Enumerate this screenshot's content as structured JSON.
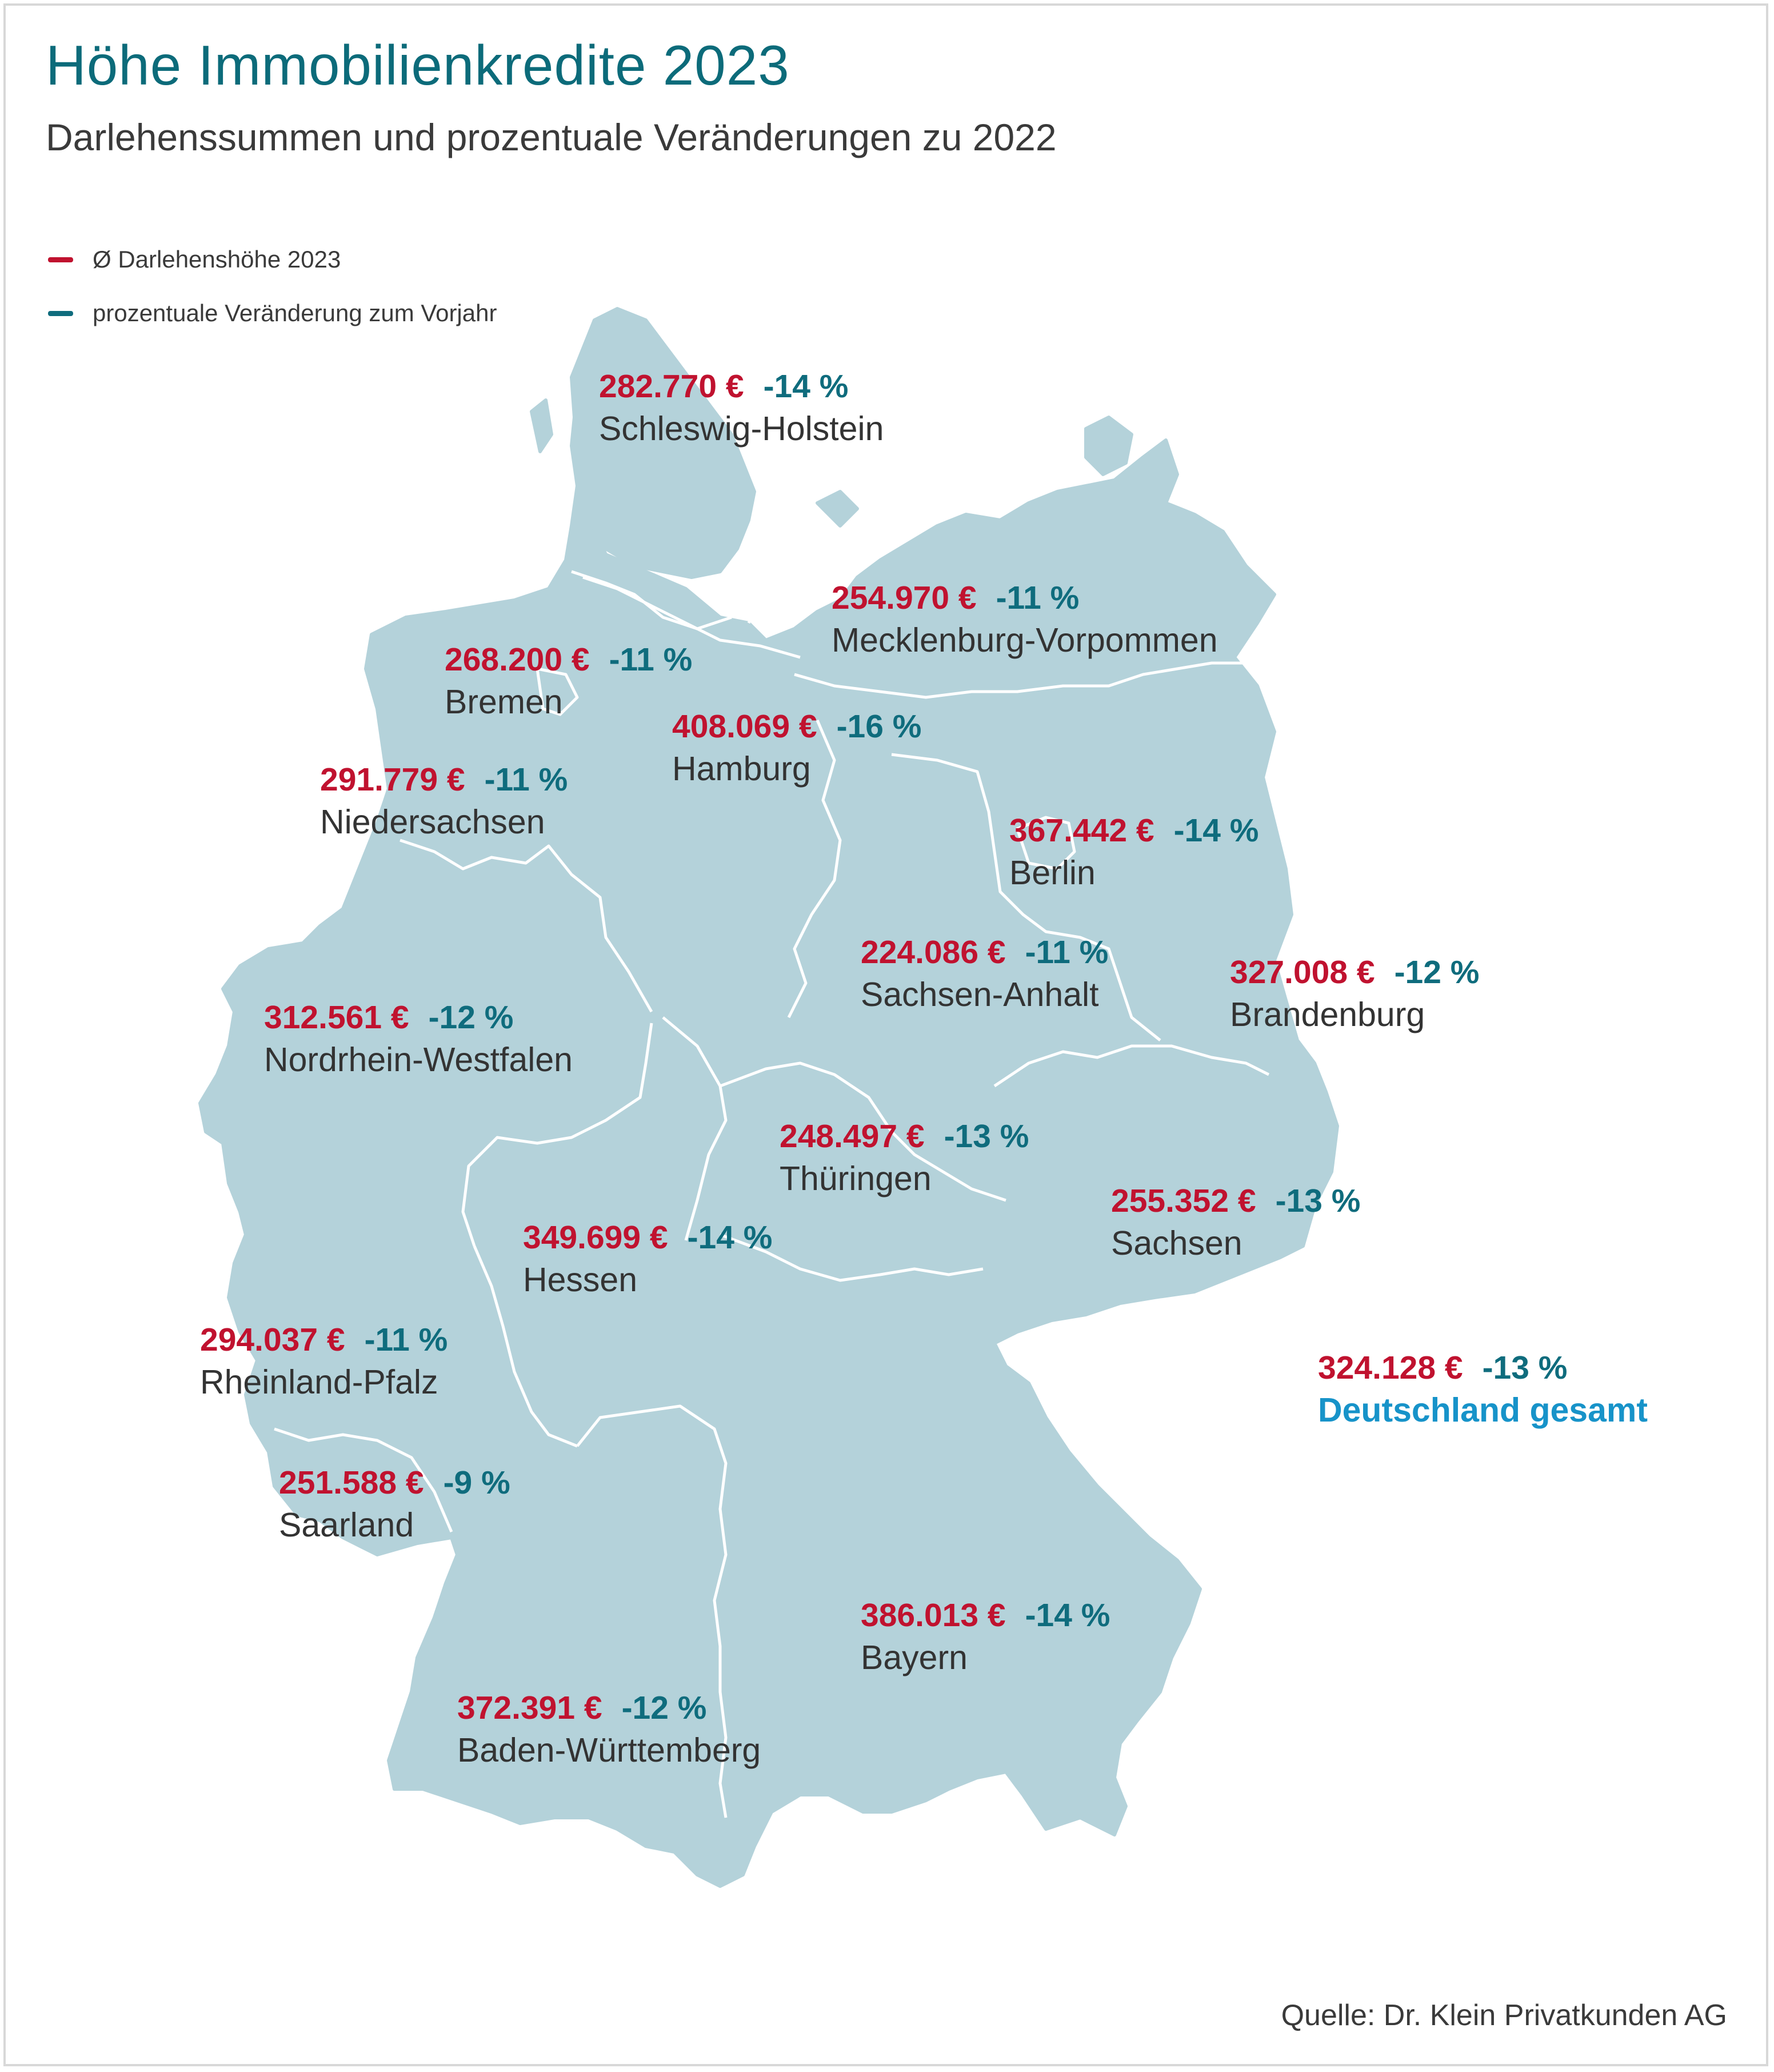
{
  "title": "Höhe Immobilienkredite 2023",
  "subtitle": "Darlehenssummen und prozentuale Veränderungen zu 2022",
  "legend": [
    {
      "label": "Ø Darlehenshöhe 2023",
      "color": "#c0122f"
    },
    {
      "label": "prozentuale Veränderung zum Vorjahr",
      "color": "#0f6c7d"
    }
  ],
  "colors": {
    "land": "#b4d2da",
    "border": "#ffffff",
    "amount": "#c0122f",
    "change": "#0f6c7d",
    "total": "#1793c9"
  },
  "regions": [
    {
      "name": "Schleswig-Holstein",
      "amount": "282.770 €",
      "change": "-14 %"
    },
    {
      "name": "Mecklenburg-Vorpommen",
      "amount": "254.970 €",
      "change": "-11 %"
    },
    {
      "name": "Bremen",
      "amount": "268.200 €",
      "change": "-11 %"
    },
    {
      "name": "Hamburg",
      "amount": "408.069 €",
      "change": "-16 %"
    },
    {
      "name": "Niedersachsen",
      "amount": "291.779 €",
      "change": "-11 %"
    },
    {
      "name": "Berlin",
      "amount": "367.442 €",
      "change": "-14 %"
    },
    {
      "name": "Sachsen-Anhalt",
      "amount": "224.086 €",
      "change": "-11 %"
    },
    {
      "name": "Brandenburg",
      "amount": "327.008 €",
      "change": "-12 %"
    },
    {
      "name": "Nordrhein-Westfalen",
      "amount": "312.561 €",
      "change": "-12 %"
    },
    {
      "name": "Thüringen",
      "amount": "248.497 €",
      "change": "-13 %"
    },
    {
      "name": "Sachsen",
      "amount": "255.352 €",
      "change": "-13 %"
    },
    {
      "name": "Hessen",
      "amount": "349.699 €",
      "change": "-14 %"
    },
    {
      "name": "Rheinland-Pfalz",
      "amount": "294.037 €",
      "change": "-11 %"
    },
    {
      "name": "Saarland",
      "amount": "251.588 €",
      "change": "-9 %"
    },
    {
      "name": "Bayern",
      "amount": "386.013 €",
      "change": "-14 %"
    },
    {
      "name": "Baden-Württemberg",
      "amount": "372.391 €",
      "change": "-12 %"
    }
  ],
  "total": {
    "name": "Deutschland gesamt",
    "amount": "324.128 €",
    "change": "-13 %"
  },
  "source": "Quelle: Dr. Klein Privatkunden AG"
}
